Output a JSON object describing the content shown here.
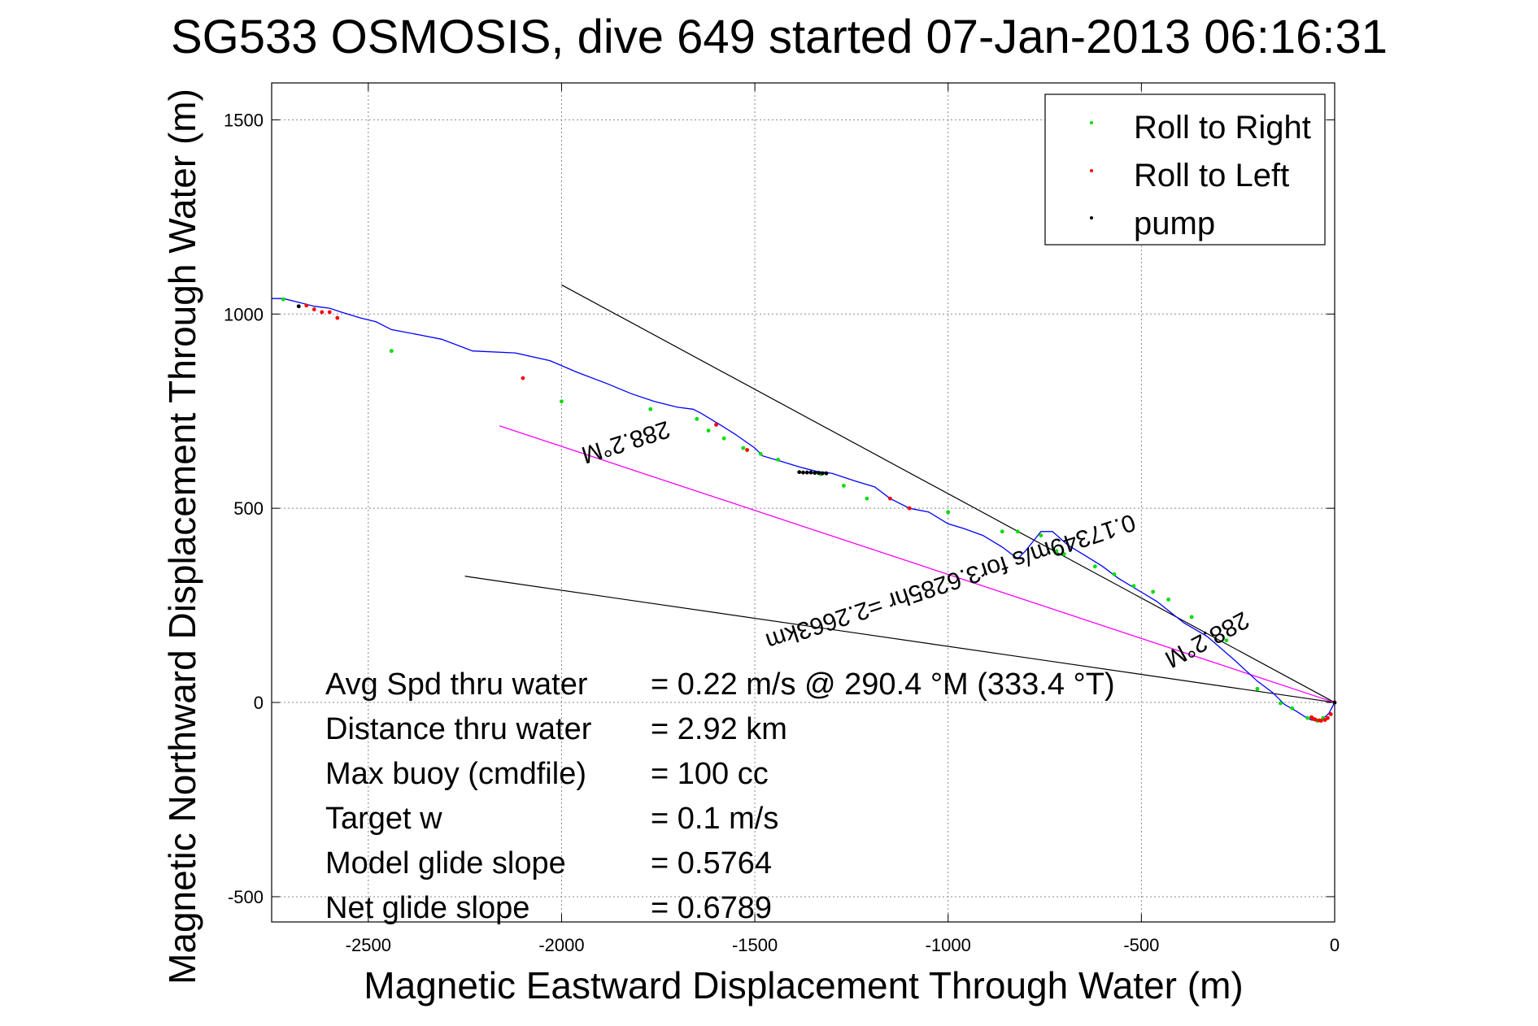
{
  "chart_data": {
    "type": "scatter",
    "title": "SG533 OSMOSIS, dive 649 started 07-Jan-2013 06:16:31",
    "xlabel": "Magnetic Eastward Displacement Through Water (m)",
    "ylabel": "Magnetic Northward Displacement Through Water (m)",
    "xlim": [
      -2750,
      0
    ],
    "ylim": [
      -565,
      1595
    ],
    "xticks": [
      -2500,
      -2000,
      -1500,
      -1000,
      -500,
      0
    ],
    "xtick_labels": [
      "-2500",
      "-2000",
      "-1500",
      "-1000",
      "-500",
      "0"
    ],
    "yticks": [
      -500,
      0,
      500,
      1000,
      1500
    ],
    "ytick_labels": [
      "-500",
      "0",
      "500",
      "1000",
      "1500"
    ],
    "grid": true,
    "legend_position": "top-right",
    "legend": [
      {
        "label": "Roll to Right",
        "color": "#00dd00"
      },
      {
        "label": "Roll to Left",
        "color": "#ff0000"
      },
      {
        "label": "pump",
        "color": "#000000"
      }
    ],
    "colors": {
      "track": "#0000ff",
      "mean_heading": "#ff00ff",
      "heading_lines": "#000000"
    },
    "track": {
      "x": [
        0,
        -15,
        -30,
        -45,
        -60,
        -75,
        -100,
        -130,
        -160,
        -200,
        -260,
        -330,
        -390,
        -460,
        -510,
        -560,
        -600,
        -640,
        -690,
        -730,
        -760,
        -800,
        -820,
        -860,
        -910,
        -960,
        -1000,
        -1050,
        -1100,
        -1150,
        -1190,
        -1240,
        -1300,
        -1340,
        -1380,
        -1430,
        -1480,
        -1500,
        -1550,
        -1590,
        -1640,
        -1660,
        -1700,
        -1760,
        -1820,
        -1880,
        -1960,
        -2030,
        -2120,
        -2230,
        -2310,
        -2360,
        -2440,
        -2480,
        -2520,
        -2570,
        -2600,
        -2640,
        -2680,
        -2720,
        -2750
      ],
      "y": [
        0,
        -28,
        -42,
        -48,
        -45,
        -38,
        -22,
        -5,
        25,
        55,
        110,
        170,
        205,
        260,
        290,
        320,
        350,
        375,
        405,
        440,
        440,
        390,
        370,
        400,
        430,
        448,
        460,
        490,
        500,
        525,
        555,
        570,
        590,
        595,
        605,
        620,
        635,
        655,
        690,
        715,
        745,
        755,
        760,
        775,
        795,
        820,
        850,
        880,
        900,
        905,
        935,
        945,
        960,
        980,
        990,
        1005,
        1015,
        1020,
        1030,
        1040,
        1040
      ]
    },
    "roll_right": {
      "x": [
        -30,
        -45,
        -70,
        -110,
        -140,
        -200,
        -280,
        -370,
        -430,
        -470,
        -520,
        -570,
        -620,
        -700,
        -720,
        -760,
        -820,
        -860,
        -1000,
        -1100,
        -1210,
        -1270,
        -1330,
        -1440,
        -1485,
        -1530,
        -1580,
        -1620,
        -1650,
        -1770,
        -2000,
        -2440,
        -2680,
        -2720
      ],
      "y": [
        -40,
        -47,
        -40,
        -15,
        -2,
        35,
        160,
        220,
        265,
        285,
        300,
        330,
        350,
        382,
        390,
        430,
        440,
        440,
        490,
        500,
        525,
        558,
        588,
        625,
        640,
        655,
        680,
        700,
        730,
        755,
        775,
        905,
        1020,
        1038
      ]
    },
    "roll_left": {
      "x": [
        -10,
        -18,
        -25,
        -35,
        -40,
        -50,
        -55,
        -60,
        -1100,
        -1150,
        -1520,
        -1600,
        -2100,
        -2600,
        -2620,
        -2640,
        -2580,
        -2660
      ],
      "y": [
        -30,
        -40,
        -45,
        -47,
        -46,
        -44,
        -42,
        -38,
        500,
        525,
        650,
        715,
        835,
        1005,
        1005,
        1012,
        990,
        1022
      ]
    },
    "pump": {
      "x": [
        0,
        -1315,
        -1325,
        -1335,
        -1345,
        -1355,
        -1365,
        -1375,
        -1385,
        -2680
      ],
      "y": [
        0,
        590,
        590,
        591,
        591,
        592,
        592,
        592,
        593,
        1020
      ]
    },
    "mean_heading_line": {
      "x": [
        0,
        -2160
      ],
      "y": [
        0,
        712
      ]
    },
    "heading_lines": [
      {
        "x": [
          0,
          -2000
        ],
        "y": [
          0,
          1075
        ]
      },
      {
        "x": [
          0,
          -2250
        ],
        "y": [
          0,
          325
        ]
      }
    ],
    "annotations": [
      {
        "text": "288.2°M",
        "x": -1840,
        "y": 690,
        "rotation_deg": 162.4
      },
      {
        "text": "0.17349m/s for3.6285hr =2.2663km",
        "x": -1000,
        "y": 330,
        "rotation_deg": 161.8
      },
      {
        "text": "288.2°M",
        "x": -340,
        "y": 180,
        "rotation_deg": 151.7
      }
    ],
    "stats": [
      {
        "label": "Avg Spd thru water",
        "value": "=  0.22 m/s @ 290.4 °M (333.4 °T)"
      },
      {
        "label": "Distance thru water",
        "value": "=  2.92 km"
      },
      {
        "label": "Max buoy (cmdfile)",
        "value": "= 100 cc"
      },
      {
        "label": "Target w",
        "value": "= 0.1 m/s"
      },
      {
        "label": "Model glide slope",
        "value": "= 0.5764"
      },
      {
        "label": "Net glide slope",
        "value": "= 0.6789"
      }
    ]
  }
}
